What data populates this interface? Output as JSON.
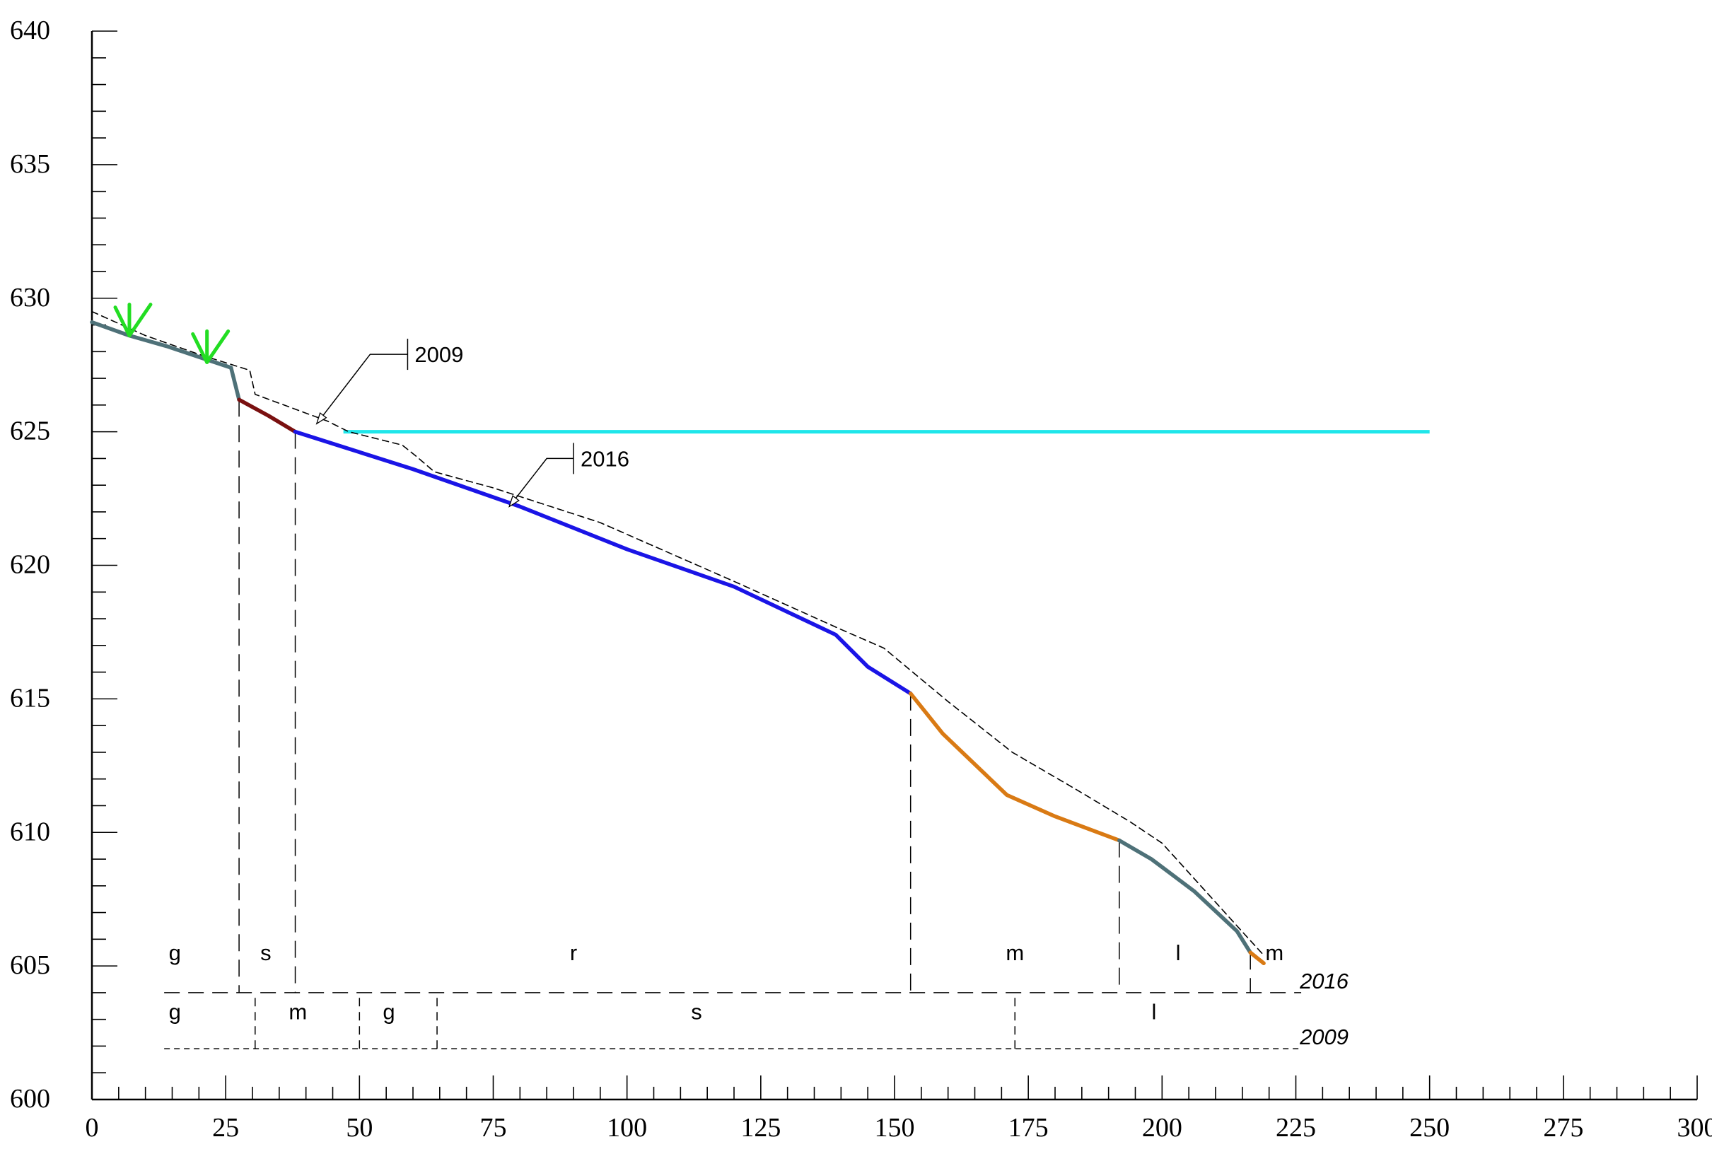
{
  "chart_data": {
    "type": "line",
    "title": "",
    "xlabel": "",
    "ylabel": "",
    "xlim": [
      0,
      300
    ],
    "ylim": [
      600,
      640
    ],
    "x_ticks": [
      0,
      25,
      50,
      75,
      100,
      125,
      150,
      175,
      200,
      225,
      250,
      275,
      300
    ],
    "y_ticks": [
      600,
      605,
      610,
      615,
      620,
      625,
      630,
      635,
      640
    ],
    "x_minor_step": 5,
    "y_minor_step": 1,
    "grid": false,
    "profiles": [
      {
        "name": "2016",
        "style": "solid",
        "segments": [
          {
            "color": "#4e7178",
            "points": [
              [
                0,
                629.1
              ],
              [
                7,
                628.6
              ],
              [
                14,
                628.2
              ],
              [
                20,
                627.8
              ],
              [
                26,
                627.4
              ]
            ]
          },
          {
            "color": "#4e7178",
            "points": [
              [
                26,
                627.4
              ],
              [
                27.5,
                626.2
              ]
            ]
          },
          {
            "color": "#7a1010",
            "points": [
              [
                27.5,
                626.2
              ],
              [
                33,
                625.6
              ],
              [
                38,
                625.0
              ]
            ]
          },
          {
            "color": "#1a14e6",
            "points": [
              [
                38,
                625.0
              ],
              [
                60,
                623.6
              ],
              [
                80,
                622.2
              ],
              [
                100,
                620.6
              ],
              [
                120,
                619.2
              ],
              [
                139,
                617.4
              ],
              [
                145,
                616.2
              ],
              [
                153,
                615.2
              ]
            ]
          },
          {
            "color": "#d97a14",
            "points": [
              [
                153,
                615.2
              ],
              [
                159,
                613.7
              ],
              [
                171,
                611.4
              ],
              [
                180,
                610.6
              ],
              [
                192,
                609.7
              ]
            ]
          },
          {
            "color": "#4e7178",
            "points": [
              [
                192,
                609.7
              ],
              [
                198,
                609.0
              ],
              [
                206,
                607.8
              ],
              [
                214,
                606.3
              ],
              [
                216.5,
                605.5
              ]
            ]
          },
          {
            "color": "#d97a14",
            "points": [
              [
                216.5,
                605.5
              ],
              [
                219,
                605.1
              ]
            ]
          }
        ]
      },
      {
        "name": "2009",
        "style": "dashed",
        "segments": [
          {
            "color": "#000000",
            "points": [
              [
                0,
                629.5
              ],
              [
                10,
                628.6
              ],
              [
                20,
                627.9
              ],
              [
                29.5,
                627.3
              ],
              [
                30.5,
                626.4
              ],
              [
                44,
                625.4
              ],
              [
                48,
                625.0
              ],
              [
                58,
                624.5
              ],
              [
                60.5,
                624.1
              ],
              [
                64,
                623.5
              ],
              [
                75,
                622.9
              ],
              [
                95,
                621.6
              ],
              [
                120,
                619.4
              ],
              [
                140,
                617.6
              ],
              [
                148,
                616.9
              ],
              [
                160,
                614.9
              ],
              [
                172,
                613.0
              ],
              [
                184,
                611.6
              ],
              [
                194,
                610.4
              ],
              [
                200,
                609.6
              ],
              [
                214,
                606.5
              ],
              [
                219,
                605.4
              ]
            ]
          }
        ]
      }
    ],
    "level_line": {
      "color": "#1fe6ea",
      "y": 625.0,
      "x_start": 47,
      "x_end": 250
    },
    "annotations": [
      {
        "text": "2009",
        "at": [
          42,
          625.3
        ],
        "elbow": [
          52,
          627.9
        ],
        "tick_x": 59
      },
      {
        "text": "2016",
        "at": [
          78,
          622.2
        ],
        "elbow": [
          85,
          624.0
        ],
        "tick_x": 90
      }
    ],
    "markers": [
      {
        "type": "arrow-down",
        "color": "#22dd22",
        "x": 7,
        "y": 628.6
      },
      {
        "type": "arrow-down",
        "color": "#22dd22",
        "x": 21.5,
        "y": 627.6
      }
    ],
    "boundary_lines": [
      {
        "x": 27.5,
        "top_y": 626.2,
        "bottom_y": 604.0
      },
      {
        "x": 38,
        "top_y": 625.0,
        "bottom_y": 604.0
      },
      {
        "x": 153,
        "top_y": 615.2,
        "bottom_y": 604.0
      },
      {
        "x": 192,
        "top_y": 609.7,
        "bottom_y": 604.0
      },
      {
        "x": 216.5,
        "top_y": 605.5,
        "bottom_y": 604.0
      }
    ],
    "classification_rows": [
      {
        "year": "2016",
        "line_y": 604.0,
        "label_y": 605.5,
        "x_start": 13.5,
        "x_end": 226,
        "style": "long-dash",
        "dividers": [],
        "labels": [
          {
            "text": "g",
            "x": 15.5
          },
          {
            "text": "s",
            "x": 32.5
          },
          {
            "text": "r",
            "x": 90
          },
          {
            "text": "m",
            "x": 172.5
          },
          {
            "text": "l",
            "x": 203
          },
          {
            "text": "m",
            "x": 221
          }
        ]
      },
      {
        "year": "2009",
        "line_y": 601.9,
        "label_y": 603.3,
        "x_start": 13.5,
        "x_end": 226,
        "style": "short-dash",
        "dividers": [
          30.5,
          50,
          64.5,
          172.5
        ],
        "labels": [
          {
            "text": "g",
            "x": 15.5
          },
          {
            "text": "m",
            "x": 38.5
          },
          {
            "text": "g",
            "x": 55.5
          },
          {
            "text": "s",
            "x": 113
          },
          {
            "text": "l",
            "x": 198.5
          }
        ]
      }
    ]
  }
}
